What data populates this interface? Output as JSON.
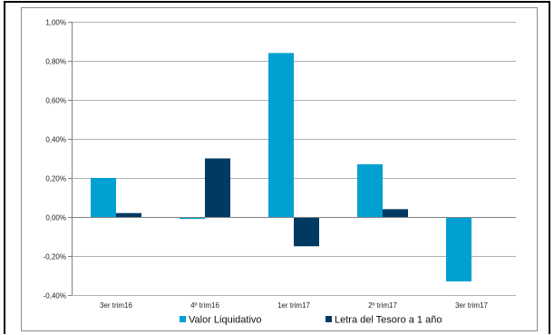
{
  "chart_data": {
    "type": "bar",
    "categories": [
      "3er trim16",
      "4º trim16",
      "1er trim17",
      "2º trim17",
      "3er trim17"
    ],
    "series": [
      {
        "name": "Valor Liquidativo",
        "color": "#00A0D2",
        "values": [
          0.2,
          -0.01,
          0.84,
          0.27,
          -0.33
        ]
      },
      {
        "name": "Letra del Tesoro a 1 año",
        "color": "#003A63",
        "values": [
          0.02,
          0.3,
          -0.15,
          0.04,
          null
        ]
      }
    ],
    "y_ticks": [
      "1,00%",
      "0,80%",
      "0,60%",
      "0,40%",
      "0,20%",
      "0,00%",
      "-0,20%",
      "-0,40%"
    ],
    "ylim": [
      -0.4,
      1.0
    ],
    "grid": true,
    "legend_position": "bottom"
  }
}
